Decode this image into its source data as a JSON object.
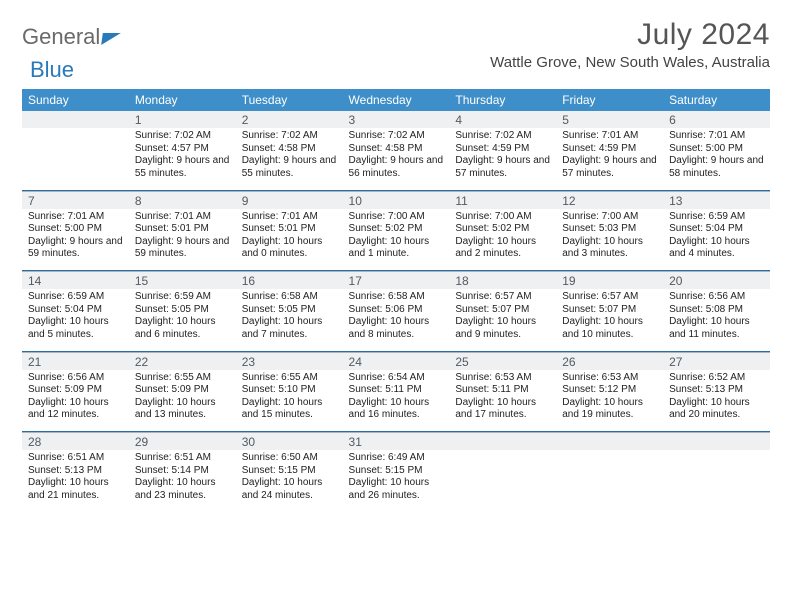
{
  "logo": {
    "text1": "General",
    "text2": "Blue",
    "color": "#2a7ab9"
  },
  "title": "July 2024",
  "location": "Wattle Grove, New South Wales, Australia",
  "colors": {
    "header_bg": "#3d8ec9",
    "header_text": "#ffffff",
    "numrow_bg": "#eef0f2",
    "numrow_text": "#525a62",
    "sep_top": "#2a6ea6",
    "sep_bottom": "#aab4bd"
  },
  "day_names": [
    "Sunday",
    "Monday",
    "Tuesday",
    "Wednesday",
    "Thursday",
    "Friday",
    "Saturday"
  ],
  "weeks": [
    {
      "nums": [
        "",
        "1",
        "2",
        "3",
        "4",
        "5",
        "6"
      ],
      "cells": [
        null,
        {
          "sr": "7:02 AM",
          "ss": "4:57 PM",
          "dl": "9 hours and 55 minutes."
        },
        {
          "sr": "7:02 AM",
          "ss": "4:58 PM",
          "dl": "9 hours and 55 minutes."
        },
        {
          "sr": "7:02 AM",
          "ss": "4:58 PM",
          "dl": "9 hours and 56 minutes."
        },
        {
          "sr": "7:02 AM",
          "ss": "4:59 PM",
          "dl": "9 hours and 57 minutes."
        },
        {
          "sr": "7:01 AM",
          "ss": "4:59 PM",
          "dl": "9 hours and 57 minutes."
        },
        {
          "sr": "7:01 AM",
          "ss": "5:00 PM",
          "dl": "9 hours and 58 minutes."
        }
      ]
    },
    {
      "nums": [
        "7",
        "8",
        "9",
        "10",
        "11",
        "12",
        "13"
      ],
      "cells": [
        {
          "sr": "7:01 AM",
          "ss": "5:00 PM",
          "dl": "9 hours and 59 minutes."
        },
        {
          "sr": "7:01 AM",
          "ss": "5:01 PM",
          "dl": "9 hours and 59 minutes."
        },
        {
          "sr": "7:01 AM",
          "ss": "5:01 PM",
          "dl": "10 hours and 0 minutes."
        },
        {
          "sr": "7:00 AM",
          "ss": "5:02 PM",
          "dl": "10 hours and 1 minute."
        },
        {
          "sr": "7:00 AM",
          "ss": "5:02 PM",
          "dl": "10 hours and 2 minutes."
        },
        {
          "sr": "7:00 AM",
          "ss": "5:03 PM",
          "dl": "10 hours and 3 minutes."
        },
        {
          "sr": "6:59 AM",
          "ss": "5:04 PM",
          "dl": "10 hours and 4 minutes."
        }
      ]
    },
    {
      "nums": [
        "14",
        "15",
        "16",
        "17",
        "18",
        "19",
        "20"
      ],
      "cells": [
        {
          "sr": "6:59 AM",
          "ss": "5:04 PM",
          "dl": "10 hours and 5 minutes."
        },
        {
          "sr": "6:59 AM",
          "ss": "5:05 PM",
          "dl": "10 hours and 6 minutes."
        },
        {
          "sr": "6:58 AM",
          "ss": "5:05 PM",
          "dl": "10 hours and 7 minutes."
        },
        {
          "sr": "6:58 AM",
          "ss": "5:06 PM",
          "dl": "10 hours and 8 minutes."
        },
        {
          "sr": "6:57 AM",
          "ss": "5:07 PM",
          "dl": "10 hours and 9 minutes."
        },
        {
          "sr": "6:57 AM",
          "ss": "5:07 PM",
          "dl": "10 hours and 10 minutes."
        },
        {
          "sr": "6:56 AM",
          "ss": "5:08 PM",
          "dl": "10 hours and 11 minutes."
        }
      ]
    },
    {
      "nums": [
        "21",
        "22",
        "23",
        "24",
        "25",
        "26",
        "27"
      ],
      "cells": [
        {
          "sr": "6:56 AM",
          "ss": "5:09 PM",
          "dl": "10 hours and 12 minutes."
        },
        {
          "sr": "6:55 AM",
          "ss": "5:09 PM",
          "dl": "10 hours and 13 minutes."
        },
        {
          "sr": "6:55 AM",
          "ss": "5:10 PM",
          "dl": "10 hours and 15 minutes."
        },
        {
          "sr": "6:54 AM",
          "ss": "5:11 PM",
          "dl": "10 hours and 16 minutes."
        },
        {
          "sr": "6:53 AM",
          "ss": "5:11 PM",
          "dl": "10 hours and 17 minutes."
        },
        {
          "sr": "6:53 AM",
          "ss": "5:12 PM",
          "dl": "10 hours and 19 minutes."
        },
        {
          "sr": "6:52 AM",
          "ss": "5:13 PM",
          "dl": "10 hours and 20 minutes."
        }
      ]
    },
    {
      "nums": [
        "28",
        "29",
        "30",
        "31",
        "",
        "",
        ""
      ],
      "cells": [
        {
          "sr": "6:51 AM",
          "ss": "5:13 PM",
          "dl": "10 hours and 21 minutes."
        },
        {
          "sr": "6:51 AM",
          "ss": "5:14 PM",
          "dl": "10 hours and 23 minutes."
        },
        {
          "sr": "6:50 AM",
          "ss": "5:15 PM",
          "dl": "10 hours and 24 minutes."
        },
        {
          "sr": "6:49 AM",
          "ss": "5:15 PM",
          "dl": "10 hours and 26 minutes."
        },
        null,
        null,
        null
      ]
    }
  ],
  "labels": {
    "sunrise": "Sunrise: ",
    "sunset": "Sunset: ",
    "daylight": "Daylight: "
  }
}
